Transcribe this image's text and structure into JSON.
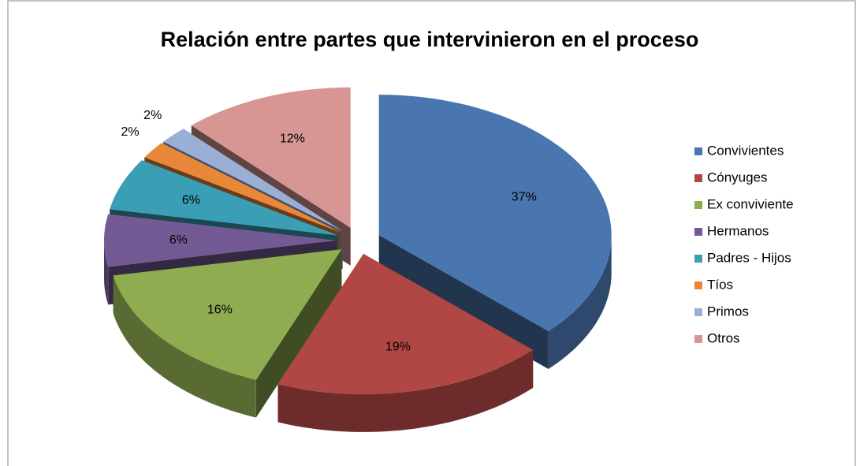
{
  "chart_data": {
    "type": "pie",
    "title": "Relación entre partes que intervinieron en el proceso",
    "categories": [
      "Convivientes",
      "Cónyuges",
      "Ex conviviente",
      "Hermanos",
      "Padres - Hijos",
      "Tíos",
      "Primos",
      "Otros"
    ],
    "values": [
      37,
      19,
      16,
      6,
      6,
      2,
      2,
      12
    ],
    "value_labels": [
      "37%",
      "19%",
      "16%",
      "6%",
      "6%",
      "2%",
      "2%",
      "12%"
    ],
    "colors": [
      "#4a76b0",
      "#b04745",
      "#8fac50",
      "#735a94",
      "#3a9eb5",
      "#e8873a",
      "#99afd6",
      "#d79693"
    ],
    "legend": "right"
  }
}
